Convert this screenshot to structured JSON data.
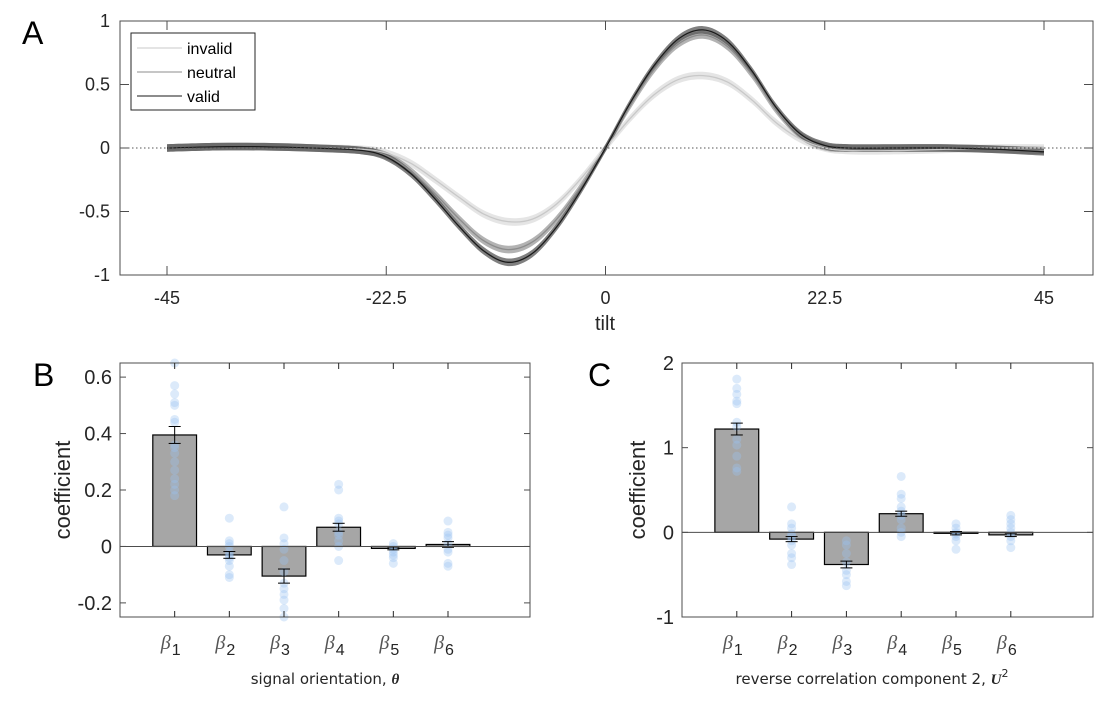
{
  "chart_data": [
    {
      "panel": "A",
      "type": "line",
      "title": "",
      "xlabel": "tilt",
      "ylabel": "",
      "xlim": [
        -48,
        55.5
      ],
      "ylim": [
        -1,
        1
      ],
      "xticks": [
        -45,
        -22.5,
        0,
        22.5,
        45
      ],
      "xtick_labels": [
        "-45",
        "-22.5",
        "0",
        "22.5",
        "45"
      ],
      "yticks": [
        -1,
        -0.5,
        0,
        0.5,
        1
      ],
      "ytick_labels": [
        "-1",
        "-0.5",
        "0",
        "0.5",
        "1"
      ],
      "zero_line": "dotted",
      "legend": {
        "placement": "top-left",
        "entries": [
          "invalid",
          "neutral",
          "valid"
        ]
      },
      "x": [
        -45,
        -40,
        -35,
        -30,
        -25,
        -22.5,
        -20,
        -17.5,
        -15,
        -12.5,
        -10,
        -7.5,
        -5,
        -2.5,
        0,
        2.5,
        5,
        7.5,
        10,
        12.5,
        15,
        17.5,
        20,
        22.5,
        25,
        30,
        35,
        40,
        45
      ],
      "series": [
        {
          "name": "invalid",
          "color": "#c8c8c8",
          "band_color": "#dcdcdc",
          "band_halfwidth": 0.03,
          "values": [
            0,
            0.01,
            0.01,
            0,
            -0.01,
            -0.04,
            -0.12,
            -0.25,
            -0.39,
            -0.52,
            -0.58,
            -0.56,
            -0.44,
            -0.24,
            0.0,
            0.23,
            0.42,
            0.54,
            0.57,
            0.52,
            0.38,
            0.2,
            0.07,
            0.0,
            -0.02,
            -0.02,
            -0.01,
            0,
            0
          ]
        },
        {
          "name": "neutral",
          "color": "#8c8c8c",
          "band_color": "#9a9a9a",
          "band_halfwidth": 0.03,
          "values": [
            0,
            0.01,
            0.01,
            0,
            -0.02,
            -0.06,
            -0.18,
            -0.36,
            -0.56,
            -0.73,
            -0.8,
            -0.74,
            -0.56,
            -0.3,
            0.0,
            0.33,
            0.62,
            0.82,
            0.89,
            0.8,
            0.58,
            0.3,
            0.1,
            0.01,
            0.0,
            0,
            0,
            -0.01,
            -0.02
          ]
        },
        {
          "name": "valid",
          "color": "#1a1a1a",
          "band_color": "#555555",
          "band_halfwidth": 0.03,
          "values": [
            0,
            0.01,
            0.01,
            0,
            -0.02,
            -0.07,
            -0.2,
            -0.4,
            -0.62,
            -0.81,
            -0.9,
            -0.83,
            -0.62,
            -0.33,
            0.0,
            0.35,
            0.65,
            0.86,
            0.93,
            0.84,
            0.61,
            0.32,
            0.11,
            0.02,
            0.0,
            0,
            0,
            -0.01,
            -0.03
          ]
        }
      ]
    },
    {
      "panel": "B",
      "type": "bar",
      "xlabel_text": "signal orientation, ",
      "xlabel_symbol": "θ",
      "ylabel": "coefficient",
      "ylim": [
        -0.25,
        0.65
      ],
      "yticks": [
        -0.2,
        0,
        0.2,
        0.4,
        0.6
      ],
      "ytick_labels": [
        "-0.2",
        "0",
        "0.2",
        "0.4",
        "0.6"
      ],
      "categories": [
        "β1",
        "β2",
        "β3",
        "β4",
        "β5",
        "β6"
      ],
      "category_symbol": "β",
      "category_subscripts": [
        "1",
        "2",
        "3",
        "4",
        "5",
        "6"
      ],
      "values": [
        0.395,
        -0.03,
        -0.105,
        0.068,
        -0.007,
        0.007
      ],
      "errors": [
        0.03,
        0.012,
        0.025,
        0.014,
        0.005,
        0.01
      ],
      "bar_color": "#a6a6a6",
      "dot_color": "#9cc4f2",
      "points": [
        [
          0.65,
          0.57,
          0.54,
          0.51,
          0.5,
          0.45,
          0.44,
          0.36,
          0.35,
          0.33,
          0.3,
          0.27,
          0.24,
          0.22,
          0.2,
          0.18
        ],
        [
          0.1,
          0.02,
          0.01,
          0.0,
          -0.02,
          -0.03,
          -0.04,
          -0.05,
          -0.07,
          -0.1,
          -0.11
        ],
        [
          0.14,
          0.03,
          0.01,
          -0.01,
          -0.05,
          -0.09,
          -0.13,
          -0.15,
          -0.17,
          -0.19,
          -0.22,
          -0.25
        ],
        [
          0.22,
          0.2,
          0.1,
          0.09,
          0.08,
          0.05,
          0.04,
          0.02,
          0.0,
          -0.05
        ],
        [
          0.01,
          0.0,
          -0.01,
          -0.02,
          -0.03,
          -0.04,
          -0.06
        ],
        [
          0.09,
          0.05,
          0.04,
          0.03,
          0.01,
          -0.01,
          -0.02,
          -0.06,
          -0.07
        ]
      ]
    },
    {
      "panel": "C",
      "type": "bar",
      "xlabel_text": "reverse correlation component 2, ",
      "xlabel_symbol": "U",
      "xlabel_superscript": "2",
      "ylabel": "coefficient",
      "ylim": [
        -1,
        2
      ],
      "yticks": [
        -1,
        0,
        1,
        2
      ],
      "ytick_labels": [
        "-1",
        "0",
        "1",
        "2"
      ],
      "categories": [
        "β1",
        "β2",
        "β3",
        "β4",
        "β5",
        "β6"
      ],
      "category_symbol": "β",
      "category_subscripts": [
        "1",
        "2",
        "3",
        "4",
        "5",
        "6"
      ],
      "values": [
        1.22,
        -0.08,
        -0.38,
        0.22,
        -0.01,
        -0.03
      ],
      "errors": [
        0.07,
        0.03,
        0.04,
        0.03,
        0.02,
        0.02
      ],
      "bar_color": "#a6a6a6",
      "dot_color": "#9cc4f2",
      "points": [
        [
          1.81,
          1.7,
          1.63,
          1.55,
          1.52,
          1.3,
          1.25,
          1.1,
          1.03,
          0.9,
          0.76,
          0.72
        ],
        [
          0.3,
          0.1,
          0.05,
          -0.02,
          -0.05,
          -0.1,
          -0.15,
          -0.25,
          -0.3,
          -0.38
        ],
        [
          -0.1,
          -0.15,
          -0.25,
          -0.35,
          -0.45,
          -0.5,
          -0.58,
          -0.63
        ],
        [
          0.66,
          0.45,
          0.4,
          0.3,
          0.25,
          0.2,
          0.15,
          0.05,
          0.0,
          -0.05
        ],
        [
          0.1,
          0.05,
          0.0,
          -0.02,
          -0.05,
          -0.1,
          -0.2
        ],
        [
          0.2,
          0.15,
          0.1,
          0.05,
          0.0,
          -0.05,
          -0.1,
          -0.18
        ]
      ]
    }
  ],
  "panels": {
    "a_letter": "A",
    "b_letter": "B",
    "c_letter": "C"
  }
}
